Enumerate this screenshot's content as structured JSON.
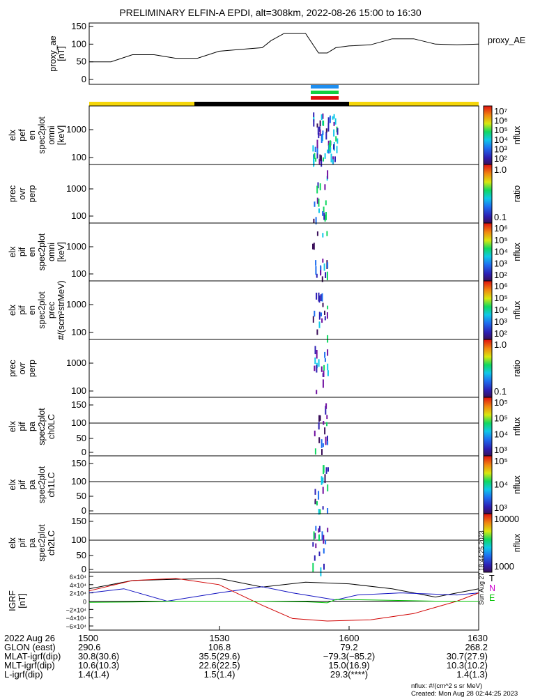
{
  "title": "PRELIMINARY ELFIN-A EPDI, alt=308km, 2022-08-26 15:00 to 16:30",
  "colors": {
    "yellow": "#f5d60a",
    "black": "#000000"
  },
  "chart_data": [
    {
      "type": "line",
      "name": "proxy_ae",
      "ylabel": [
        "proxy_ae",
        "[nT]"
      ],
      "legend": "proxy_AE",
      "ylim": [
        0,
        150
      ],
      "yticks": [
        "150",
        "100",
        "50",
        "0"
      ],
      "x_minutes": [
        0,
        5,
        10,
        15,
        20,
        25,
        30,
        35,
        40,
        42,
        45,
        50,
        53,
        55,
        57,
        60,
        65,
        70,
        75,
        80,
        85,
        90
      ],
      "values": [
        50,
        50,
        70,
        70,
        60,
        60,
        80,
        85,
        90,
        110,
        130,
        130,
        75,
        75,
        90,
        95,
        98,
        115,
        115,
        100,
        98,
        100
      ]
    },
    {
      "type": "heatmap",
      "name": "elx_pef_en_spec2plot_omni",
      "ylabel": [
        "elx",
        "pef",
        "en",
        "spec2plot",
        "omni",
        "[keV]"
      ],
      "yticks": [
        "1000",
        "100"
      ],
      "colorbar": {
        "label": "nflux",
        "ticks": [
          "10⁷",
          "10⁶",
          "10⁵",
          "10⁴",
          "10³",
          "10²"
        ]
      }
    },
    {
      "type": "heatmap",
      "name": "prec_ovr_perp_1",
      "ylabel": [
        "prec",
        "ovr",
        "perp"
      ],
      "yticks": [
        "1000",
        "100"
      ],
      "colorbar": {
        "label": "ratio",
        "ticks": [
          "1.0",
          "0.1"
        ]
      }
    },
    {
      "type": "heatmap",
      "name": "elx_pif_en_spec2plot_omni",
      "ylabel": [
        "elx",
        "pif",
        "en",
        "spec2plot",
        "omni",
        "[keV]"
      ],
      "yticks": [
        "1000",
        "100"
      ],
      "colorbar": {
        "label": "nflux",
        "ticks": [
          "10⁶",
          "10⁵",
          "10⁴",
          "10³",
          "10²"
        ]
      }
    },
    {
      "type": "heatmap",
      "name": "elx_pif_en_spec2plot_prec",
      "ylabel": [
        "elx",
        "pif",
        "en",
        "spec2plot",
        "prec",
        "#/(scm²strMeV)"
      ],
      "yticks": [
        "1000",
        "100"
      ],
      "colorbar": {
        "label": "nflux",
        "ticks": [
          "10⁶",
          "10⁵",
          "10⁴",
          "10³",
          "10²"
        ]
      }
    },
    {
      "type": "heatmap",
      "name": "prec_ovr_perp_2",
      "ylabel": [
        "prec",
        "ovr",
        "perp"
      ],
      "yticks": [
        "1000",
        "100"
      ],
      "colorbar": {
        "label": "ratio",
        "ticks": [
          "1.0",
          "0.1"
        ]
      }
    },
    {
      "type": "heatmap",
      "name": "elx_pif_pa_spec2plot_ch0LC",
      "ylabel": [
        "elx",
        "pif",
        "pa",
        "spec2plot",
        "ch0LC"
      ],
      "yticks": [
        "150",
        "100",
        "50",
        "0"
      ],
      "colorbar": {
        "label": "nflux",
        "ticks": [
          "10⁵",
          "10⁵",
          "10⁴",
          "10³"
        ]
      }
    },
    {
      "type": "heatmap",
      "name": "elx_pif_pa_spec2plot_ch1LC",
      "ylabel": [
        "elx",
        "pif",
        "pa",
        "spec2plot",
        "ch1LC"
      ],
      "yticks": [
        "150",
        "100",
        "50",
        "0"
      ],
      "colorbar": {
        "label": "nflux",
        "ticks": [
          "10⁵",
          "10⁴",
          "10³"
        ]
      }
    },
    {
      "type": "heatmap",
      "name": "elx_pif_pa_spec2plot_ch2LC",
      "ylabel": [
        "elx",
        "pif",
        "pa",
        "spec2plot",
        "ch2LC"
      ],
      "yticks": [
        "150",
        "100",
        "50",
        "0"
      ],
      "colorbar": {
        "label": "nflux",
        "ticks": [
          "10000",
          "1000"
        ]
      }
    },
    {
      "type": "line",
      "name": "igrf",
      "ylabel": [
        "IGRF",
        "[nT]"
      ],
      "ylim": [
        -70000,
        70000
      ],
      "yticks": [
        "6×10⁴",
        "4×10⁴",
        "2×10⁴",
        "0",
        "−2×10⁴",
        "−4×10⁴",
        "−6×10⁴"
      ],
      "legend": [
        "T",
        "N",
        "E"
      ],
      "side_label": "Sun Aug 27 18:44:25 2023",
      "series": [
        {
          "name": "T",
          "color": "#000000",
          "x_minutes": [
            0,
            10,
            20,
            30,
            40,
            50,
            60,
            70,
            80,
            90
          ],
          "values": [
            30000,
            50000,
            53000,
            55000,
            34000,
            46000,
            42000,
            30000,
            10000,
            30000
          ]
        },
        {
          "name": "N",
          "color": "#1010c0",
          "x_minutes": [
            0,
            8,
            18,
            30,
            40,
            47,
            57,
            62,
            72,
            85,
            90
          ],
          "values": [
            20000,
            30000,
            0,
            20000,
            35000,
            20000,
            3000,
            15000,
            20000,
            15000,
            20000
          ]
        },
        {
          "name": "",
          "color": "#d00000",
          "x_minutes": [
            0,
            10,
            20,
            30,
            40,
            47,
            55,
            65,
            75,
            85,
            90
          ],
          "values": [
            25000,
            50000,
            55000,
            40000,
            -10000,
            -42000,
            -48000,
            -45000,
            -30000,
            0,
            20000
          ]
        },
        {
          "name": "E",
          "color": "#00c000",
          "x_minutes": [
            0,
            10,
            20,
            30,
            40,
            50,
            55,
            57,
            65,
            80,
            90
          ],
          "values": [
            -3000,
            -2000,
            0,
            0,
            0,
            -1500,
            -4000,
            4000,
            3000,
            0,
            0
          ]
        }
      ]
    }
  ],
  "xaxis": {
    "ticks": [
      "1500",
      "1530",
      "1600",
      "1630"
    ],
    "rows": [
      {
        "label": "2022 Aug 26",
        "values": [
          "1500",
          "1530",
          "1600",
          "1630"
        ]
      },
      {
        "label": "GLON (east)",
        "values": [
          "290.6",
          "106.8",
          "79.2",
          "268.2"
        ]
      },
      {
        "label": "MLAT-igrf(dip)",
        "values": [
          "30.8(30.6)",
          "35.5(29.6)",
          "−79.3(−85.2)",
          "30.7(27.9)"
        ]
      },
      {
        "label": "MLT-igrf(dip)",
        "values": [
          "10.6(10.3)",
          "22.6(22.5)",
          "15.0(16.9)",
          "10.3(10.2)"
        ]
      },
      {
        "label": "L-igrf(dip)",
        "values": [
          "1.4(1.4)",
          "1.5(1.4)",
          "29.3(****)",
          "1.4(1.3)"
        ]
      }
    ]
  },
  "footer": {
    "units": "nflux: #/(cm^2 s sr MeV)",
    "created": "Created: Mon Aug 28 02:44:25 2023"
  }
}
